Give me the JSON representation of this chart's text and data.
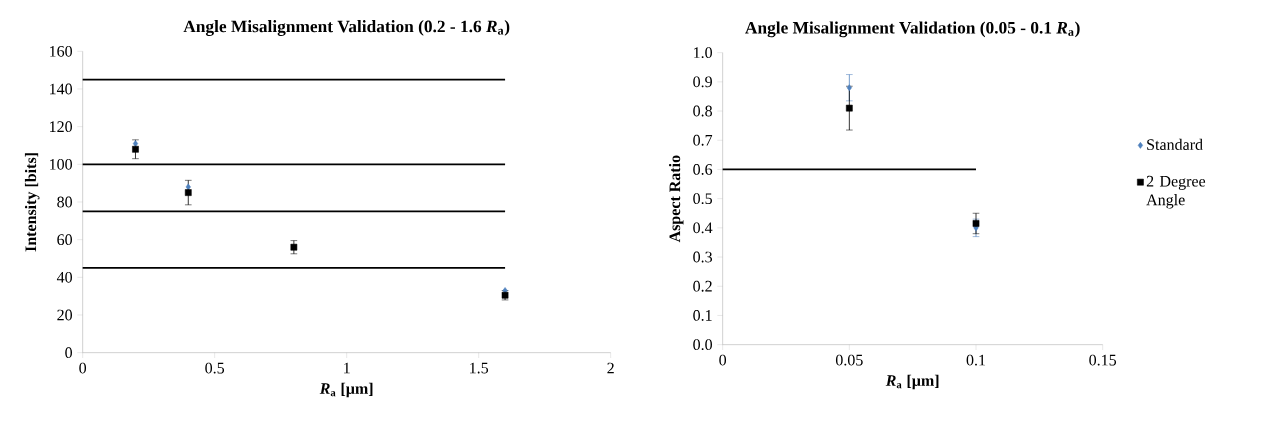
{
  "chart_data": [
    {
      "type": "scatter",
      "title": "Angle Misalignment Validation (0.2 - 1.6 *R*$_{a}$)",
      "xlabel": "*R*$_{a}$ [µm]",
      "ylabel": "Intensity [bits]",
      "x": [
        0.2,
        0.4,
        0.8,
        1.6
      ],
      "series": [
        {
          "color": "#4f81bd",
          "marker": "diamond",
          "values": [
            111,
            88,
            null,
            33
          ]
        },
        {
          "color": "#000000",
          "marker": "square",
          "values": [
            108,
            85,
            56,
            30.5
          ],
          "errors": [
            5,
            6.5,
            3.5,
            2.5
          ]
        }
      ],
      "xlim": [
        0,
        2
      ],
      "xticks": [
        0,
        0.5,
        1,
        1.5,
        2
      ],
      "ylim": [
        0,
        160
      ],
      "yticks": [
        0,
        20,
        40,
        60,
        80,
        100,
        120,
        140,
        160
      ],
      "ref_lines": [
        {
          "axis": "y",
          "value": 145,
          "color": "#000000"
        },
        {
          "axis": "y",
          "value": 100,
          "color": "#000000"
        },
        {
          "axis": "y",
          "value": 75,
          "color": "#000000"
        },
        {
          "axis": "y",
          "value": 45,
          "color": "#000000"
        }
      ],
      "grid": false,
      "legend": false
    },
    {
      "type": "scatter",
      "title": "Angle Misalignment Validation (0.05 - 0.1 *R*$_{a}$)",
      "xlabel": "*R*$_{a}$ [µm]",
      "ylabel": "Aspect Ratio",
      "x": [
        0.05,
        0.1
      ],
      "series": [
        {
          "name": "Standard",
          "color": "#4f81bd",
          "marker": "diamond",
          "values": [
            0.88,
            0.4
          ],
          "errors": [
            0.045,
            0.03
          ]
        },
        {
          "name": "2 Degree Angle",
          "color": "#000000",
          "marker": "square",
          "values": [
            0.81,
            0.415
          ],
          "errors": [
            0.075,
            0.035
          ]
        }
      ],
      "xlim": [
        0,
        0.15
      ],
      "xticks": [
        0,
        0.05,
        0.1,
        0.15
      ],
      "ylim": [
        0,
        1
      ],
      "yticks": [
        {
          "value": 0,
          "label": "0.0"
        },
        {
          "value": 0.1,
          "label": "0.1"
        },
        {
          "value": 0.2,
          "label": "0.2"
        },
        {
          "value": 0.3,
          "label": "0.3"
        },
        {
          "value": 0.4,
          "label": "0.4"
        },
        {
          "value": 0.5,
          "label": "0.5"
        },
        {
          "value": 0.6,
          "label": "0.6"
        },
        {
          "value": 0.7,
          "label": "0.7"
        },
        {
          "value": 0.8,
          "label": "0.8"
        },
        {
          "value": 0.9,
          "label": "0.9"
        },
        {
          "value": 1,
          "label": "1.0"
        }
      ],
      "ref_lines": [
        {
          "axis": "y",
          "value": 0.6,
          "color": "#000000"
        }
      ],
      "grid": false,
      "legend": "right"
    }
  ]
}
